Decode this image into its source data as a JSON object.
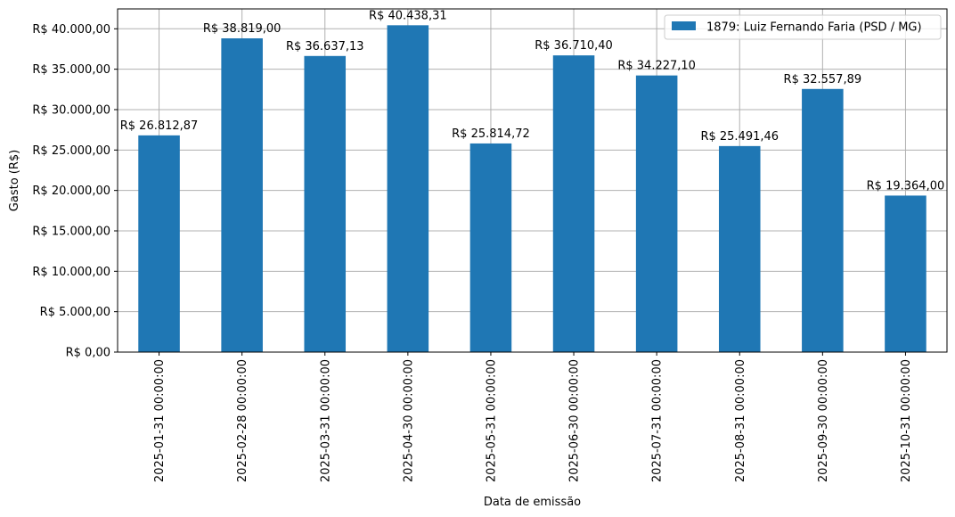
{
  "chart_data": {
    "type": "bar",
    "categories": [
      "2025-01-31 00:00:00",
      "2025-02-28 00:00:00",
      "2025-03-31 00:00:00",
      "2025-04-30 00:00:00",
      "2025-05-31 00:00:00",
      "2025-06-30 00:00:00",
      "2025-07-31 00:00:00",
      "2025-08-31 00:00:00",
      "2025-09-30 00:00:00",
      "2025-10-31 00:00:00"
    ],
    "series": [
      {
        "name": "1879: Luiz Fernando Faria (PSD / MG)",
        "values": [
          26812.87,
          38819.0,
          36637.13,
          40438.31,
          25814.72,
          36710.4,
          34227.1,
          25491.46,
          32557.89,
          19364.0
        ],
        "data_labels": [
          "R$ 26.812,87",
          "R$ 38.819,00",
          "R$ 36.637,13",
          "R$ 40.438,31",
          "R$ 25.814,72",
          "R$ 36.710,40",
          "R$ 34.227,10",
          "R$ 25.491,46",
          "R$ 32.557,89",
          "R$ 19.364,00"
        ],
        "color": "#1f77b4"
      }
    ],
    "title": "",
    "xlabel": "Data de emissão",
    "ylabel": "Gasto (R$)",
    "ylim": [
      0,
      42460.2
    ],
    "yticks": [
      0,
      5000,
      10000,
      15000,
      20000,
      25000,
      30000,
      35000,
      40000
    ],
    "ytick_labels": [
      "R$ 0,00",
      "R$ 5.000,00",
      "R$ 10.000,00",
      "R$ 15.000,00",
      "R$ 20.000,00",
      "R$ 25.000,00",
      "R$ 30.000,00",
      "R$ 35.000,00",
      "R$ 40.000,00"
    ],
    "grid": true,
    "legend_position": "top-right",
    "grid_color": "#b0b0b0"
  }
}
